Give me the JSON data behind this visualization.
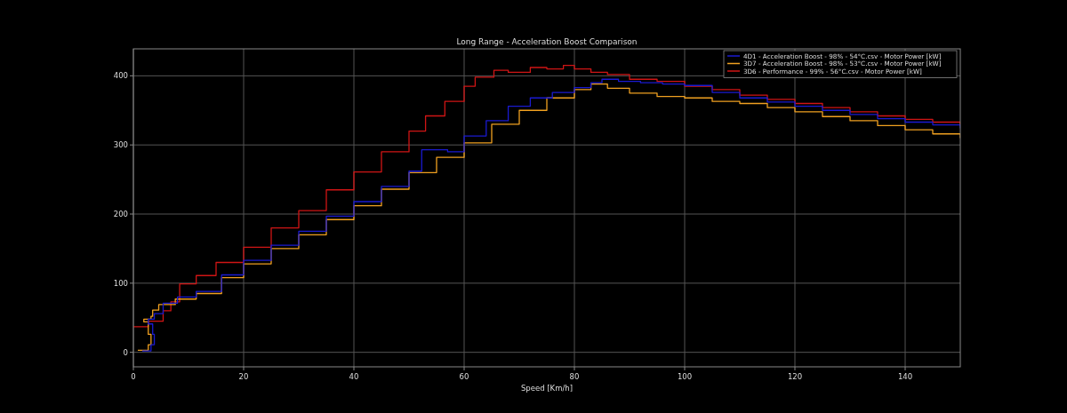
{
  "chart_data": {
    "type": "step",
    "title": "Long Range - Acceleration Boost Comparison",
    "xlabel": "Speed [Km/h]",
    "xlim": [
      0,
      150
    ],
    "xticks": [
      0,
      20,
      40,
      60,
      80,
      100,
      120,
      140
    ],
    "ylim": [
      -21,
      439
    ],
    "yticks": [
      0,
      100,
      200,
      300,
      400
    ],
    "grid": true,
    "legend": "top right",
    "marker": "none",
    "line_style": "solid",
    "series": [
      {
        "name": "4D1 - Acceleration Boost - 98% - 54°C.csv - Motor Power [kW]",
        "color": "#1a1ad0",
        "x": [
          1.6,
          3.2,
          3.8,
          3.5,
          2.7,
          3.8,
          5.4,
          8,
          11.4,
          16,
          20,
          25,
          30,
          35,
          40,
          45,
          50,
          52.3,
          55,
          57,
          60,
          64,
          68,
          72,
          76,
          80,
          83,
          85,
          88,
          92,
          96,
          100,
          105,
          110,
          115,
          120,
          125,
          130,
          135,
          140,
          145,
          150
        ],
        "values": [
          2,
          11,
          26,
          41,
          48,
          56,
          71,
          80,
          88,
          112,
          133,
          155,
          175,
          197,
          218,
          240,
          262,
          293,
          293,
          290,
          313,
          335,
          356,
          368,
          376,
          383,
          390,
          395,
          392,
          390,
          388,
          386,
          376,
          368,
          362,
          356,
          350,
          344,
          338,
          333,
          329,
          324
        ]
      },
      {
        "name": "3D7 - Acceleration Boost - 98% - 53°C.csv - Motor Power [kW]",
        "color": "#f0a020",
        "x": [
          0.8,
          2.7,
          3.2,
          2.7,
          1.9,
          3.2,
          3.5,
          4.6,
          7.6,
          11.4,
          16,
          20,
          25,
          30,
          35,
          40,
          45,
          50,
          55,
          60,
          65,
          70,
          75,
          80,
          83,
          86,
          90,
          95,
          100,
          105,
          110,
          115,
          120,
          125,
          130,
          135,
          140,
          145,
          150
        ],
        "values": [
          3,
          11,
          26,
          44,
          48,
          52,
          61,
          69,
          77,
          85,
          108,
          128,
          150,
          170,
          192,
          212,
          236,
          260,
          282,
          303,
          330,
          350,
          368,
          380,
          388,
          382,
          375,
          370,
          368,
          363,
          360,
          354,
          348,
          341,
          335,
          328,
          322,
          316,
          310
        ]
      },
      {
        "name": "3D6 - Performance - 99% - 56°C.csv - Motor Power [kW]",
        "color": "#d01515",
        "x": [
          0,
          2.2,
          2.7,
          4.1,
          5.4,
          6.8,
          8.4,
          11.4,
          15,
          20,
          25,
          30,
          35,
          40,
          45,
          50,
          53,
          56.5,
          60,
          62,
          65.4,
          68,
          72,
          75,
          78,
          80,
          83,
          86,
          90,
          95,
          100,
          105,
          110,
          115,
          120,
          125,
          130,
          135,
          140,
          145,
          150
        ],
        "values": [
          37,
          37,
          45,
          45,
          60,
          73,
          99,
          111,
          130,
          152,
          180,
          205,
          235,
          261,
          290,
          320,
          342,
          363,
          385,
          398,
          408,
          405,
          412,
          410,
          415,
          410,
          405,
          402,
          395,
          392,
          385,
          380,
          372,
          366,
          360,
          354,
          348,
          342,
          337,
          333,
          328
        ]
      }
    ]
  }
}
